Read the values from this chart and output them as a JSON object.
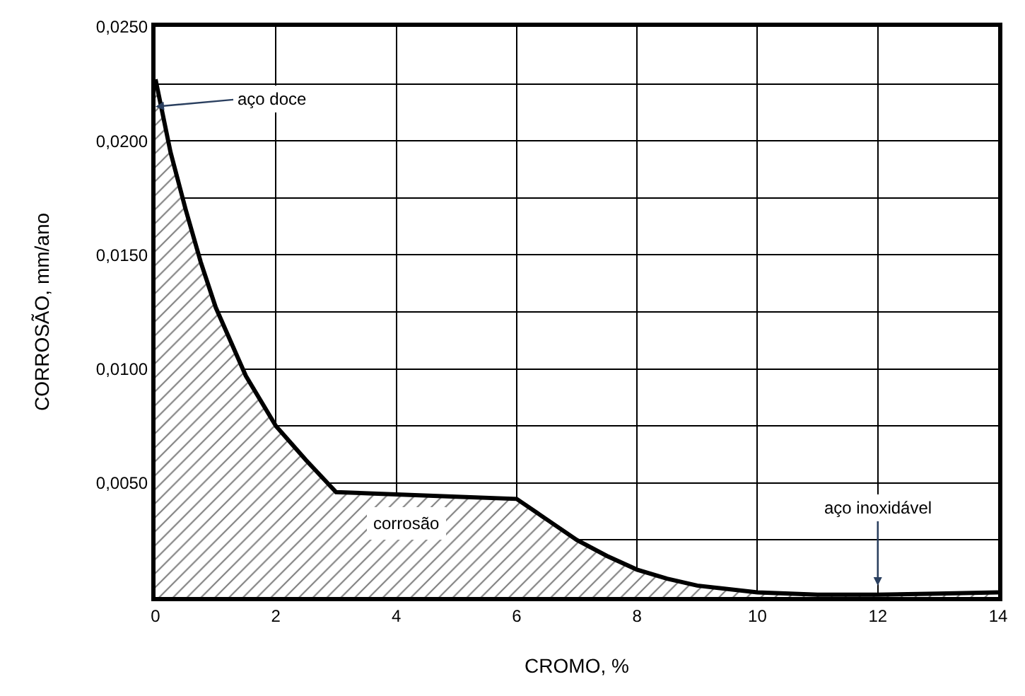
{
  "chart_data": {
    "type": "area",
    "xlabel": "CROMO, %",
    "ylabel": "CORROSÃO, mm/ano",
    "x": [
      0,
      0.25,
      0.5,
      0.75,
      1,
      1.5,
      2,
      2.5,
      3,
      4,
      5,
      6,
      6.5,
      7,
      7.5,
      8,
      8.5,
      9,
      10,
      11,
      12,
      13,
      14
    ],
    "series": [
      {
        "color": "#000000",
        "values": [
          0.0227,
          0.0195,
          0.017,
          0.0147,
          0.0127,
          0.0097,
          0.0075,
          0.006,
          0.0046,
          0.0045,
          0.0044,
          0.0043,
          0.0034,
          0.0025,
          0.0018,
          0.0012,
          0.0008,
          0.0005,
          0.0002,
          0.0001,
          0.0001,
          0.00015,
          0.0002
        ]
      }
    ],
    "xlim": [
      0,
      14
    ],
    "xticks": [
      0,
      2,
      4,
      6,
      8,
      10,
      12,
      14
    ],
    "ylim": [
      0,
      0.025
    ],
    "yticks": [
      {
        "value": 0.0025,
        "label": null
      },
      {
        "value": 0.005,
        "label": "0,0050"
      },
      {
        "value": 0.0075,
        "label": null
      },
      {
        "value": 0.01,
        "label": "0,0100"
      },
      {
        "value": 0.0125,
        "label": null
      },
      {
        "value": 0.015,
        "label": "0,0150"
      },
      {
        "value": 0.0175,
        "label": null
      },
      {
        "value": 0.02,
        "label": "0,0200"
      },
      {
        "value": 0.0225,
        "label": null
      },
      {
        "value": 0.025,
        "label": "0,0250"
      }
    ],
    "grid": true,
    "annotations": [
      {
        "text": "aço doce",
        "x": 0,
        "y": 0.0215
      },
      "corrosão",
      {
        "text": "aço inoxidável",
        "x": 12,
        "y": 0.0005
      }
    ]
  }
}
